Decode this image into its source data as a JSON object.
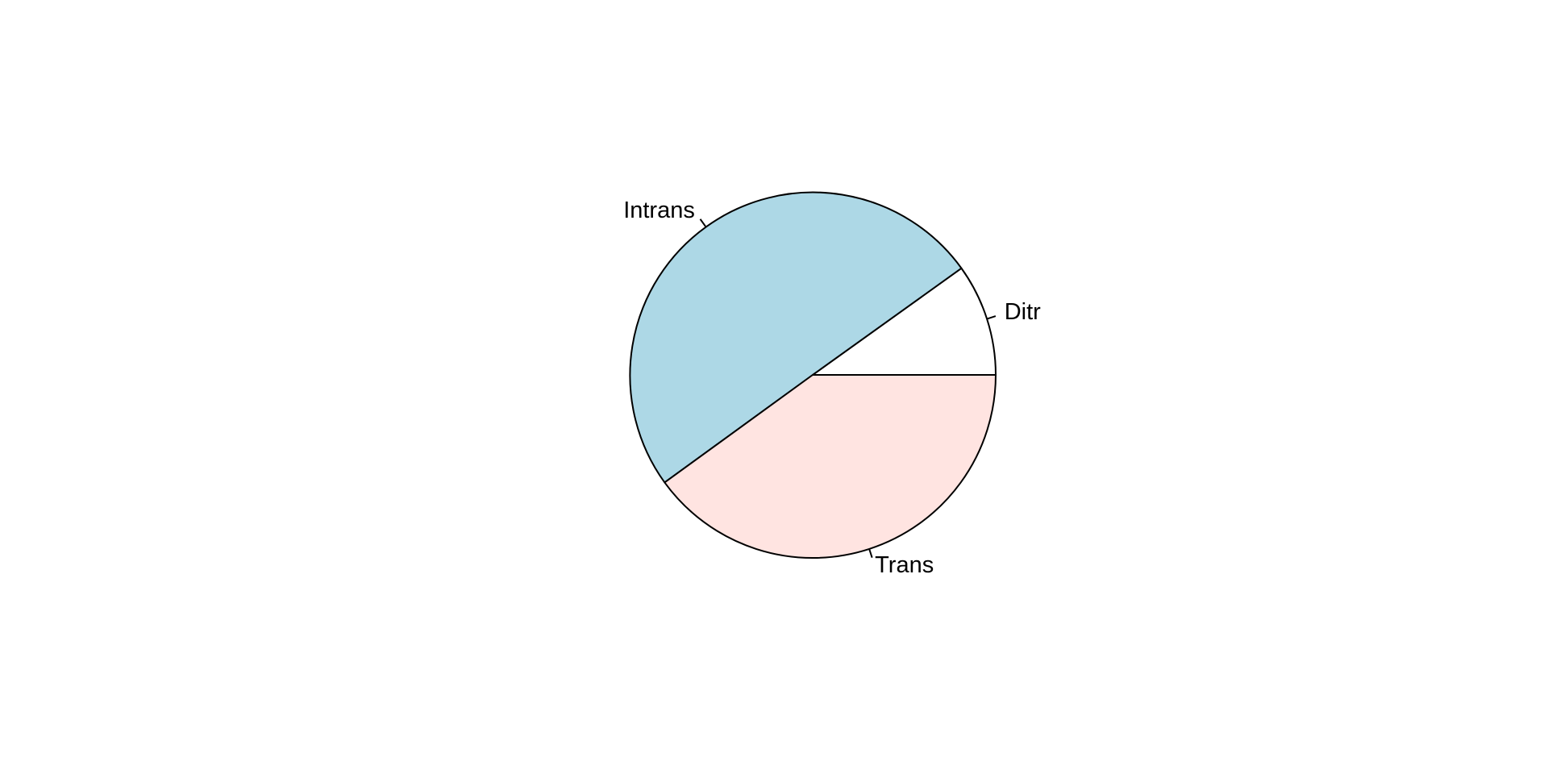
{
  "chart_data": {
    "type": "pie",
    "title": "",
    "start_angle_deg": 0,
    "direction": "counterclockwise",
    "grid": false,
    "legend": "none",
    "slices": [
      {
        "label": "Ditr",
        "value": 9.9,
        "color": "#ffffff"
      },
      {
        "label": "Intrans",
        "value": 50.1,
        "color": "#add8e6"
      },
      {
        "label": "Trans",
        "value": 40.0,
        "color": "#ffe4e1"
      }
    ]
  }
}
